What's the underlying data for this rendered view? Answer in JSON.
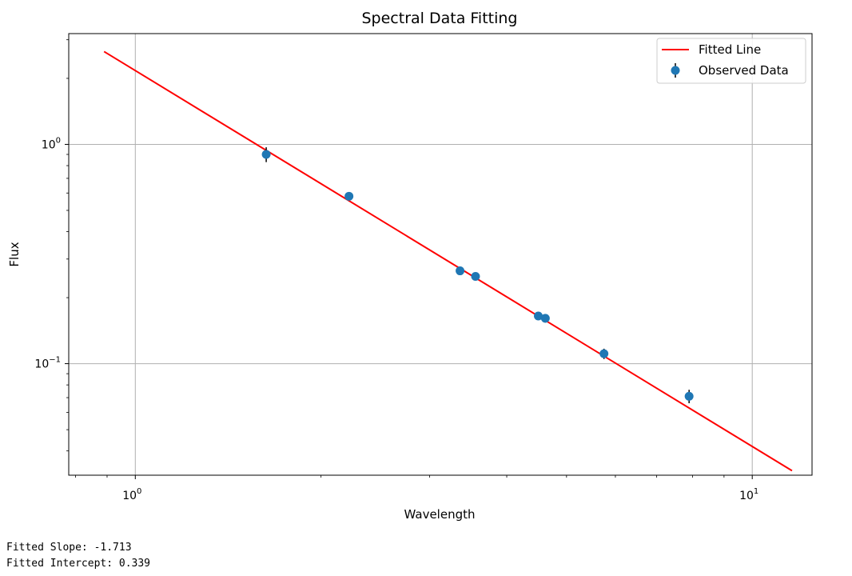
{
  "chart_data": {
    "type": "scatter",
    "title": "Spectral Data Fitting",
    "xlabel": "Wavelength",
    "ylabel": "Flux",
    "xscale": "log",
    "yscale": "log",
    "xlim": [
      0.78,
      12.5
    ],
    "ylim": [
      0.031,
      3.2
    ],
    "grid": true,
    "legend_position": "top-right",
    "x_tick_labels": [
      {
        "value": 1,
        "base": "10",
        "exp": "0"
      },
      {
        "value": 10,
        "base": "10",
        "exp": "1"
      }
    ],
    "y_tick_labels": [
      {
        "value": 1,
        "base": "10",
        "exp": "0"
      },
      {
        "value": 0.1,
        "base": "10",
        "exp": "−1"
      }
    ],
    "series": [
      {
        "name": "Fitted Line",
        "kind": "line",
        "color": "#ff0000",
        "x": [
          0.89,
          11.6
        ],
        "y": [
          2.65,
          0.0325
        ]
      },
      {
        "name": "Observed Data",
        "kind": "errorbar",
        "color": "#1f77b4",
        "x": [
          1.63,
          2.22,
          3.36,
          3.56,
          4.5,
          4.62,
          5.75,
          7.9
        ],
        "y": [
          0.9,
          0.58,
          0.265,
          0.25,
          0.165,
          0.161,
          0.111,
          0.071
        ],
        "yerr": [
          0.07,
          0.025,
          0.01,
          0.008,
          0.007,
          0.007,
          0.006,
          0.005
        ]
      }
    ]
  },
  "output": {
    "slope_line": "Fitted Slope: -1.713",
    "intercept_line": "Fitted Intercept: 0.339"
  }
}
